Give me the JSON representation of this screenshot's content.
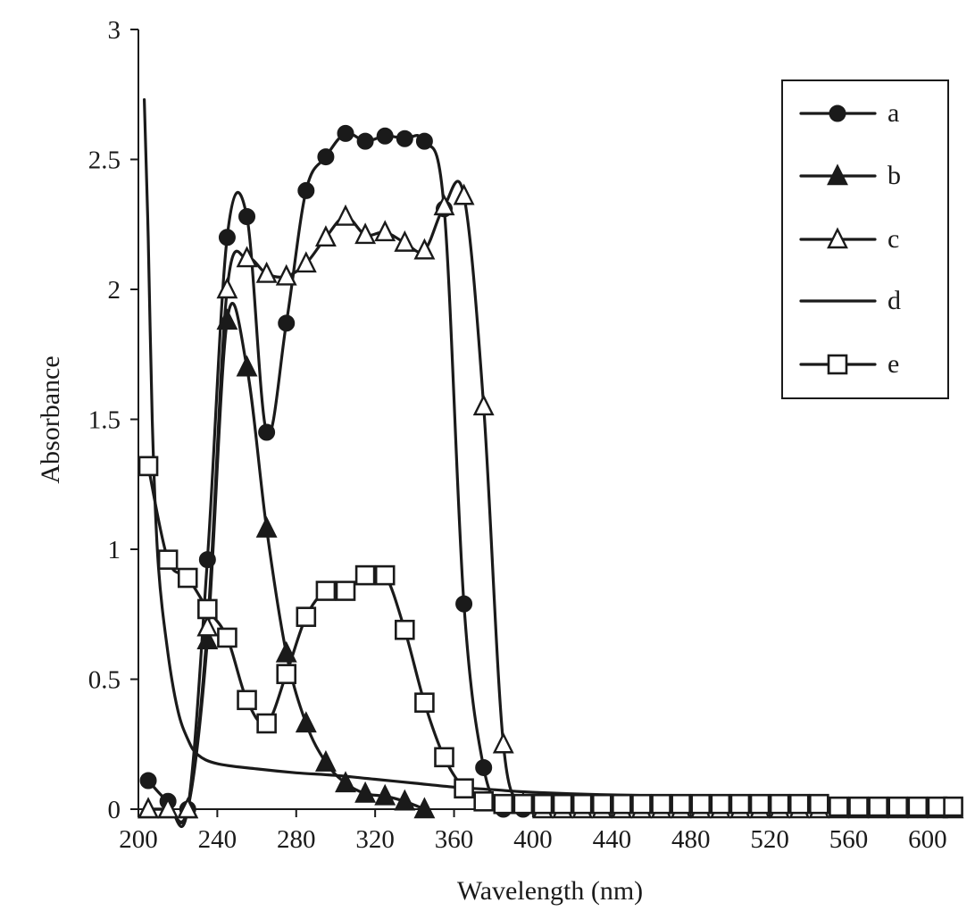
{
  "chart_data": {
    "type": "line",
    "xlabel": "Wavelength (nm)",
    "ylabel": "Absorbance",
    "xlim": [
      200,
      615
    ],
    "ylim": [
      0,
      3
    ],
    "xticks": [
      200,
      240,
      280,
      320,
      360,
      400,
      440,
      480,
      520,
      560,
      600
    ],
    "yticks": [
      0,
      0.5,
      1,
      1.5,
      2,
      2.5,
      3
    ],
    "ytick_labels": [
      "0",
      "0.5",
      "1",
      "1.5",
      "2",
      "2.5",
      "3"
    ],
    "grid": false,
    "legend_position": "top-right",
    "series": [
      {
        "name": "a",
        "marker": "filled-circle",
        "points": [
          [
            205,
            0.11
          ],
          [
            215,
            0.03
          ],
          [
            225,
            0.0
          ],
          [
            235,
            0.96
          ],
          [
            245,
            2.2
          ],
          [
            255,
            2.28
          ],
          [
            265,
            1.45
          ],
          [
            275,
            1.87
          ],
          [
            285,
            2.38
          ],
          [
            295,
            2.51
          ],
          [
            305,
            2.6
          ],
          [
            315,
            2.57
          ],
          [
            325,
            2.59
          ],
          [
            335,
            2.58
          ],
          [
            345,
            2.57
          ],
          [
            355,
            2.31
          ],
          [
            365,
            0.79
          ],
          [
            375,
            0.16
          ],
          [
            385,
            0.0
          ],
          [
            395,
            0.0
          ],
          [
            405,
            0.0
          ],
          [
            415,
            0.0
          ],
          [
            425,
            0.0
          ],
          [
            435,
            0.0
          ],
          [
            445,
            0.0
          ],
          [
            455,
            0.0
          ],
          [
            465,
            0.0
          ],
          [
            475,
            0.0
          ],
          [
            485,
            0.0
          ],
          [
            495,
            0.0
          ],
          [
            505,
            0.0
          ],
          [
            515,
            0.0
          ],
          [
            525,
            0.0
          ],
          [
            535,
            0.0
          ],
          [
            545,
            0.0
          ],
          [
            555,
            0.0
          ],
          [
            565,
            0.0
          ],
          [
            575,
            0.0
          ],
          [
            585,
            0.0
          ],
          [
            595,
            0.0
          ],
          [
            605,
            0.0
          ],
          [
            613,
            0.0
          ]
        ]
      },
      {
        "name": "b",
        "marker": "filled-triangle",
        "points": [
          [
            205,
            0.0
          ],
          [
            215,
            0.0
          ],
          [
            225,
            0.0
          ],
          [
            235,
            0.65
          ],
          [
            245,
            1.88
          ],
          [
            255,
            1.7
          ],
          [
            265,
            1.08
          ],
          [
            275,
            0.6
          ],
          [
            285,
            0.33
          ],
          [
            295,
            0.18
          ],
          [
            305,
            0.1
          ],
          [
            315,
            0.06
          ],
          [
            325,
            0.05
          ],
          [
            335,
            0.03
          ],
          [
            345,
            0.0
          ]
        ]
      },
      {
        "name": "c",
        "marker": "open-triangle",
        "points": [
          [
            205,
            0.0
          ],
          [
            215,
            0.0
          ],
          [
            225,
            0.0
          ],
          [
            235,
            0.7
          ],
          [
            245,
            2.0
          ],
          [
            255,
            2.12
          ],
          [
            265,
            2.06
          ],
          [
            275,
            2.05
          ],
          [
            285,
            2.1
          ],
          [
            295,
            2.2
          ],
          [
            305,
            2.28
          ],
          [
            315,
            2.21
          ],
          [
            325,
            2.22
          ],
          [
            335,
            2.18
          ],
          [
            345,
            2.15
          ],
          [
            355,
            2.32
          ],
          [
            365,
            2.36
          ],
          [
            375,
            1.55
          ],
          [
            385,
            0.25
          ],
          [
            395,
            0.02
          ],
          [
            405,
            0.0
          ],
          [
            415,
            0.0
          ],
          [
            425,
            0.0
          ],
          [
            435,
            0.0
          ],
          [
            445,
            0.0
          ],
          [
            455,
            0.0
          ],
          [
            465,
            0.0
          ],
          [
            475,
            0.0
          ],
          [
            485,
            0.0
          ],
          [
            495,
            0.0
          ],
          [
            505,
            0.0
          ],
          [
            515,
            0.0
          ],
          [
            525,
            0.0
          ],
          [
            535,
            0.0
          ],
          [
            545,
            0.0
          ],
          [
            555,
            0.0
          ],
          [
            565,
            0.0
          ],
          [
            575,
            0.0
          ],
          [
            585,
            0.0
          ],
          [
            595,
            0.0
          ],
          [
            605,
            0.0
          ],
          [
            613,
            0.0
          ]
        ]
      },
      {
        "name": "d",
        "marker": "none",
        "points": [
          [
            203,
            2.73
          ],
          [
            205,
            2.2
          ],
          [
            207,
            1.5
          ],
          [
            210,
            0.95
          ],
          [
            215,
            0.6
          ],
          [
            220,
            0.38
          ],
          [
            225,
            0.27
          ],
          [
            230,
            0.21
          ],
          [
            240,
            0.175
          ],
          [
            260,
            0.155
          ],
          [
            280,
            0.14
          ],
          [
            300,
            0.13
          ],
          [
            320,
            0.115
          ],
          [
            340,
            0.1
          ],
          [
            360,
            0.085
          ],
          [
            380,
            0.075
          ],
          [
            400,
            0.065
          ],
          [
            440,
            0.055
          ],
          [
            480,
            0.05
          ],
          [
            520,
            0.045
          ],
          [
            560,
            0.04
          ],
          [
            600,
            0.038
          ],
          [
            613,
            0.037
          ]
        ]
      },
      {
        "name": "e",
        "marker": "open-square",
        "points": [
          [
            205,
            1.32
          ],
          [
            215,
            0.96
          ],
          [
            225,
            0.89
          ],
          [
            235,
            0.77
          ],
          [
            245,
            0.66
          ],
          [
            255,
            0.42
          ],
          [
            265,
            0.33
          ],
          [
            275,
            0.52
          ],
          [
            285,
            0.74
          ],
          [
            295,
            0.84
          ],
          [
            305,
            0.84
          ],
          [
            315,
            0.9
          ],
          [
            325,
            0.9
          ],
          [
            335,
            0.69
          ],
          [
            345,
            0.41
          ],
          [
            355,
            0.2
          ],
          [
            365,
            0.08
          ],
          [
            375,
            0.03
          ],
          [
            385,
            0.02
          ],
          [
            395,
            0.02
          ],
          [
            405,
            0.02
          ],
          [
            415,
            0.02
          ],
          [
            425,
            0.02
          ],
          [
            435,
            0.02
          ],
          [
            445,
            0.02
          ],
          [
            455,
            0.02
          ],
          [
            465,
            0.02
          ],
          [
            475,
            0.02
          ],
          [
            485,
            0.02
          ],
          [
            495,
            0.02
          ],
          [
            505,
            0.02
          ],
          [
            515,
            0.02
          ],
          [
            525,
            0.02
          ],
          [
            535,
            0.02
          ],
          [
            545,
            0.02
          ],
          [
            555,
            0.01
          ],
          [
            565,
            0.01
          ],
          [
            575,
            0.01
          ],
          [
            585,
            0.01
          ],
          [
            595,
            0.01
          ],
          [
            605,
            0.01
          ],
          [
            613,
            0.01
          ]
        ]
      }
    ]
  }
}
